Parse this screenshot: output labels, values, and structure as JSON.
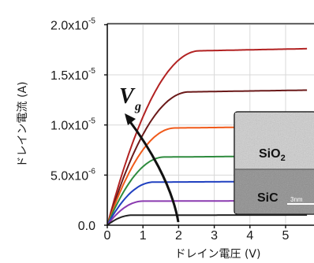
{
  "chart_data": {
    "type": "line",
    "title": "",
    "xlabel": "ドレイン電圧 (V)",
    "ylabel": "ドレイン電流 (A)",
    "xlim": [
      0,
      5.5
    ],
    "ylim": [
      0,
      2e-05
    ],
    "grid": true,
    "x_ticks": [
      {
        "value": 0,
        "label": "0"
      },
      {
        "value": 1,
        "label": "1"
      },
      {
        "value": 2,
        "label": "2"
      },
      {
        "value": 3,
        "label": "3"
      },
      {
        "value": 4,
        "label": "4"
      },
      {
        "value": 5,
        "label": "5"
      }
    ],
    "y_ticks": [
      {
        "value": 0,
        "label": "0.0",
        "sup": ""
      },
      {
        "value": 5e-06,
        "label": "5.0x10",
        "sup": "-6"
      },
      {
        "value": 1e-05,
        "label": "1.0x10",
        "sup": "-5"
      },
      {
        "value": 1.5e-05,
        "label": "1.5x10",
        "sup": "-5"
      },
      {
        "value": 2e-05,
        "label": "2.0x10",
        "sup": "-5"
      }
    ],
    "series": [
      {
        "color": "#b22222",
        "isat": 1.74e-05,
        "vsat": 2.6
      },
      {
        "color": "#6b1a1a",
        "isat": 1.33e-05,
        "vsat": 2.3
      },
      {
        "color": "#f05a1a",
        "isat": 9.7e-06,
        "vsat": 1.9
      },
      {
        "color": "#2e8b3e",
        "isat": 6.8e-06,
        "vsat": 1.6
      },
      {
        "color": "#2040c0",
        "isat": 4.3e-06,
        "vsat": 1.3
      },
      {
        "color": "#8a3ab0",
        "isat": 2.4e-06,
        "vsat": 1.0
      },
      {
        "color": "#222222",
        "isat": 1e-06,
        "vsat": 0.7
      }
    ],
    "annotation": {
      "text": "V",
      "subscript": "g"
    },
    "inset": {
      "labels": {
        "oxide": "SiO",
        "oxide_sub": "2",
        "substrate": "SiC",
        "scale": "3nm"
      }
    }
  }
}
